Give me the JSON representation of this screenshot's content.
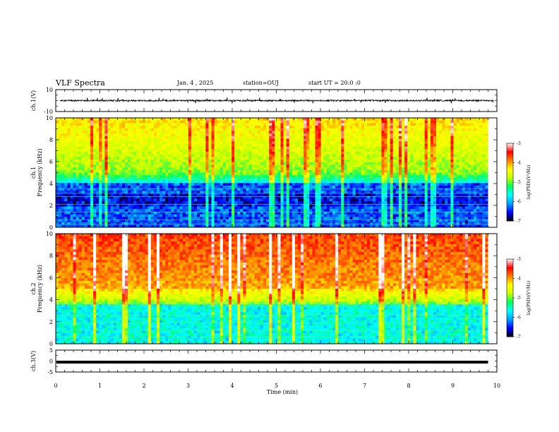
{
  "header": {
    "title": "VLF Spectra",
    "date": "Jan. 4 , 2025",
    "station": "station=OUJ",
    "start": "start UT =  20:0 :0"
  },
  "colors": {
    "colormap": [
      "#000000",
      "#0000ff",
      "#00a0ff",
      "#00ffff",
      "#00ff60",
      "#c8ff00",
      "#ffff00",
      "#ff8000",
      "#ff0000",
      "#ffffff"
    ],
    "trace": "#000000"
  },
  "chart_data": [
    {
      "type": "line",
      "name": "waveform-ch1",
      "ylabel": "ch.1(V)",
      "ylim": [
        -10,
        10
      ],
      "yticks": [
        "10",
        "-10"
      ],
      "xlim": [
        0,
        10
      ],
      "note_level": 0
    },
    {
      "type": "heatmap",
      "name": "spectrogram-ch1",
      "ylabel": "ch.1\nFrequency (kHz)",
      "ylabel_lines": [
        "ch.1",
        "Frequency (kHz)"
      ],
      "ylim": [
        0,
        10
      ],
      "yticks": [
        "0",
        "2",
        "4",
        "6",
        "8",
        "10"
      ],
      "xlim": [
        0,
        9.8
      ],
      "colorbar": {
        "label": "log(PSD)(V²/Hz)",
        "range": [
          -7,
          -3
        ],
        "ticks": [
          "-3",
          "-4",
          "-5",
          "-6",
          "-7"
        ]
      }
    },
    {
      "type": "heatmap",
      "name": "spectrogram-ch2",
      "ylabel_lines": [
        "ch.2",
        "Frequency (kHz)"
      ],
      "ylim": [
        0,
        10
      ],
      "yticks": [
        "0",
        "2",
        "4",
        "6",
        "8",
        "10"
      ],
      "xlim": [
        0,
        9.8
      ],
      "colorbar": {
        "label": "log(PSD)(V²/Hz)",
        "range": [
          -7,
          -3
        ],
        "ticks": [
          "-3",
          "-4",
          "-5",
          "-6",
          "-7"
        ]
      }
    },
    {
      "type": "line",
      "name": "waveform-ch3",
      "ylabel": "ch.3(V)",
      "ylim": [
        -5,
        5
      ],
      "yticks": [
        "5",
        "0",
        "-5"
      ],
      "xlim": [
        0,
        10
      ],
      "level": -0.5
    }
  ],
  "xaxis": {
    "label": "Time (min)",
    "ticks": [
      "0",
      "1",
      "2",
      "3",
      "4",
      "5",
      "6",
      "7",
      "8",
      "9",
      "10"
    ],
    "range": [
      0,
      10
    ]
  }
}
